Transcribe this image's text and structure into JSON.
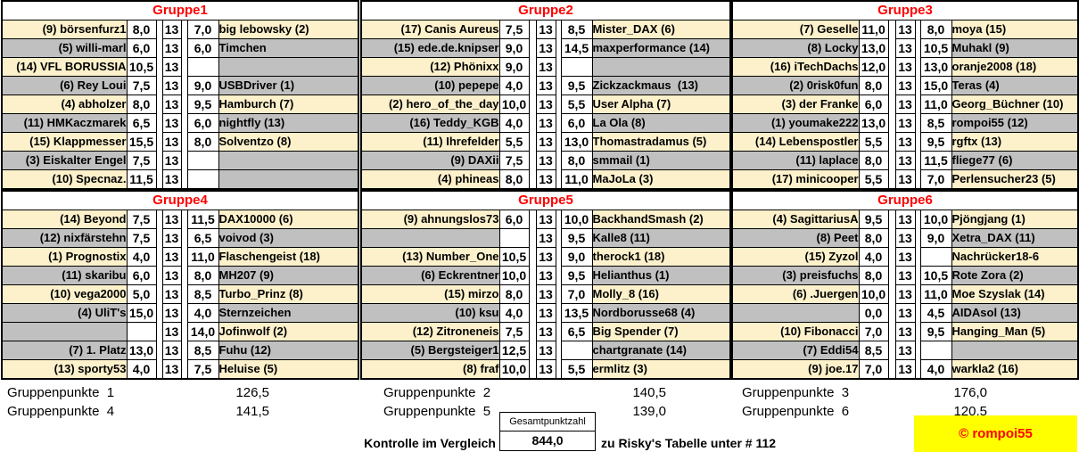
{
  "groups": [
    {
      "title": "Gruppe1",
      "rows": [
        [
          "(9) börsenfurz1",
          "8,0",
          "13",
          "7,0",
          "big lebowsky (2)"
        ],
        [
          "(5) willi-marl",
          "6,0",
          "13",
          "6,0",
          "Timchen"
        ],
        [
          "(14) VFL BORUSSIA",
          "10,5",
          "13",
          "",
          ""
        ],
        [
          "(6) Rey Loui",
          "7,5",
          "13",
          "9,0",
          "USBDriver (1)"
        ],
        [
          "(4) abholzer",
          "8,0",
          "13",
          "9,5",
          "Hamburch (7)"
        ],
        [
          "(11) HMKaczmarek",
          "6,5",
          "13",
          "6,0",
          "nightfly (13)"
        ],
        [
          "(15) Klappmesser",
          "15,5",
          "13",
          "8,0",
          "Solventzo (8)"
        ],
        [
          "(3) Eiskalter Engel",
          "7,5",
          "13",
          "",
          ""
        ],
        [
          "(10) Specnaz.",
          "11,5",
          "13",
          "",
          ""
        ]
      ]
    },
    {
      "title": "Gruppe2",
      "rows": [
        [
          "(17) Canis Aureus",
          "7,5",
          "13",
          "8,5",
          "Mister_DAX (6)"
        ],
        [
          "(15) ede.de.knipser",
          "9,0",
          "13",
          "14,5",
          "maxperformance (14)"
        ],
        [
          "(12) Phönixx",
          "9,0",
          "13",
          "",
          ""
        ],
        [
          "(10) pepepe",
          "4,0",
          "13",
          "9,5",
          "Zickzackmaus  (13)"
        ],
        [
          "(2) hero_of_the_day",
          "10,0",
          "13",
          "5,5",
          "User Alpha (7)"
        ],
        [
          "(16) Teddy_KGB",
          "4,0",
          "13",
          "6,0",
          "La Ola (8)"
        ],
        [
          "(11) Ihrefelder",
          "5,5",
          "13",
          "13,0",
          "Thomastradamus (5)"
        ],
        [
          "(9) DAXii",
          "7,5",
          "13",
          "8,0",
          "smmail (1)"
        ],
        [
          "(4) phineas",
          "8,0",
          "13",
          "11,0",
          "MaJoLa (3)"
        ]
      ]
    },
    {
      "title": "Gruppe3",
      "rows": [
        [
          "(7) Geselle",
          "11,0",
          "13",
          "8,0",
          "moya (15)"
        ],
        [
          "(8) Locky",
          "13,0",
          "13",
          "10,5",
          "Muhakl (9)"
        ],
        [
          "(16) iTechDachs",
          "12,0",
          "13",
          "13,0",
          "oranje2008 (18)"
        ],
        [
          "(2) 0risk0fun",
          "8,0",
          "13",
          "15,0",
          "Teras (4)"
        ],
        [
          "(3) der Franke",
          "6,0",
          "13",
          "11,0",
          "Georg_Büchner (10)"
        ],
        [
          "(1) youmake222",
          "13,0",
          "13",
          "8,5",
          "rompoi55 (12)"
        ],
        [
          "(14) Lebenspostler",
          "5,5",
          "13",
          "9,5",
          "rgftx (13)"
        ],
        [
          "(11) laplace",
          "8,0",
          "13",
          "11,5",
          "fliege77 (6)"
        ],
        [
          "(17) minicooper",
          "5,5",
          "13",
          "7,0",
          "Perlensucher23 (5)"
        ]
      ]
    },
    {
      "title": "Gruppe4",
      "rows": [
        [
          "(14) Beyond",
          "7,5",
          "13",
          "11,5",
          "DAX10000 (6)"
        ],
        [
          "(12) nixfärstehn",
          "7,5",
          "13",
          "6,5",
          "voivod (3)"
        ],
        [
          "(1) Prognostix",
          "4,0",
          "13",
          "11,0",
          "Flaschengeist (18)"
        ],
        [
          "(11) skaribu",
          "6,0",
          "13",
          "8,0",
          "MH207 (9)"
        ],
        [
          "(10) vega2000",
          "5,0",
          "13",
          "8,5",
          "Turbo_Prinz (8)"
        ],
        [
          "(4) UliT's",
          "15,0",
          "13",
          "4,0",
          "Sternzeichen"
        ],
        [
          "",
          "",
          "13",
          "14,0",
          "Jofinwolf (2)"
        ],
        [
          "(7) 1. Platz",
          "13,0",
          "13",
          "8,5",
          "Fuhu (12)"
        ],
        [
          "(13) sporty53",
          "4,0",
          "13",
          "7,5",
          "Heluise (5)"
        ]
      ]
    },
    {
      "title": "Gruppe5",
      "rows": [
        [
          "(9) ahnungslos73",
          "6,0",
          "13",
          "10,0",
          "BackhandSmash (2)"
        ],
        [
          "",
          "",
          "13",
          "9,5",
          "Kalle8 (11)"
        ],
        [
          "(13) Number_One",
          "10,5",
          "13",
          "9,0",
          "therock1 (18)"
        ],
        [
          "(6) Eckrentner",
          "10,0",
          "13",
          "9,5",
          "Helianthus (1)"
        ],
        [
          "(15) mirzo",
          "8,0",
          "13",
          "7,0",
          "Molly_8 (16)"
        ],
        [
          "(10) ksu",
          "4,0",
          "13",
          "13,5",
          "Nordborusse68 (4)"
        ],
        [
          "(12) Zitroneneis",
          "7,5",
          "13",
          "6,5",
          "Big Spender (7)"
        ],
        [
          "(5) Bergsteiger1",
          "12,5",
          "13",
          "",
          "chartgranate (14)"
        ],
        [
          "(8) fraf",
          "10,0",
          "13",
          "5,5",
          "ermlitz (3)"
        ]
      ]
    },
    {
      "title": "Gruppe6",
      "rows": [
        [
          "(4) SagittariusA",
          "9,5",
          "13",
          "10,0",
          "Pjöngjang (1)"
        ],
        [
          "(8) Peet",
          "8,0",
          "13",
          "9,0",
          "Xetra_DAX (11)"
        ],
        [
          "(15) Zyzol",
          "4,0",
          "13",
          "",
          "Nachrücker18-6"
        ],
        [
          "(3) preisfuchs",
          "8,0",
          "13",
          "10,5",
          "Rote Zora (2)"
        ],
        [
          "(6) .Juergen",
          "10,0",
          "13",
          "11,0",
          "Moe Szyslak (14)"
        ],
        [
          "",
          "0,0",
          "13",
          "4,5",
          "AIDAsol (13)"
        ],
        [
          "(10) Fibonacci",
          "7,0",
          "13",
          "9,5",
          "Hanging_Man (5)"
        ],
        [
          "(7) Eddi54",
          "8,5",
          "13",
          "",
          ""
        ],
        [
          "(9) joe.17",
          "7,0",
          "13",
          "4,0",
          "warkla2 (16)"
        ]
      ]
    }
  ],
  "group_points": [
    {
      "label": "Gruppenpunkte  1",
      "value": "126,5"
    },
    {
      "label": "Gruppenpunkte  2",
      "value": "140,5"
    },
    {
      "label": "Gruppenpunkte  3",
      "value": "176,0"
    },
    {
      "label": "Gruppenpunkte  4",
      "value": "141,5"
    },
    {
      "label": "Gruppenpunkte  5",
      "value": "139,0"
    },
    {
      "label": "Gruppenpunkte  6",
      "value": "120,5"
    }
  ],
  "kontrolle": {
    "label": "Kontrolle im Vergleich",
    "box_title": "Gesamtpunktzahl",
    "box_value": "844,0",
    "note": "zu Risky's Tabelle unter # 112"
  },
  "credit": "© rompoi55",
  "colors": {
    "row_cream": "#fcf1cb",
    "row_gray": "#c0c0c0",
    "header_red": "#ff0000",
    "credit_yellow": "#ffff00"
  }
}
